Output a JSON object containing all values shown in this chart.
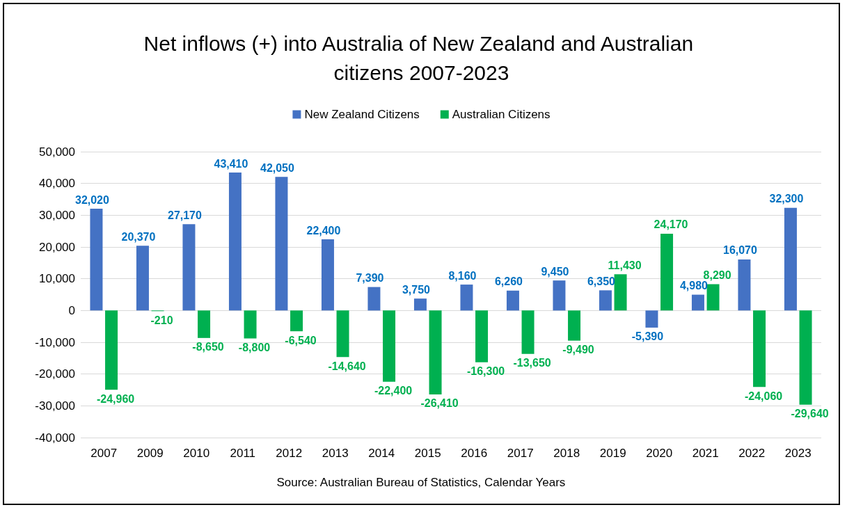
{
  "chart_data": {
    "type": "bar",
    "title": "Net inflows (+) into Australia of New Zealand and Australian citizens 2007-2023",
    "categories": [
      "2007",
      "2009",
      "2010",
      "2011",
      "2012",
      "2013",
      "2014",
      "2015",
      "2016",
      "2017",
      "2018",
      "2019",
      "2020",
      "2021",
      "2022",
      "2023"
    ],
    "series": [
      {
        "name": "New Zealand Citizens",
        "color": "#4472c4",
        "values": [
          32020,
          20370,
          27170,
          43410,
          42050,
          22400,
          7390,
          3750,
          8160,
          6260,
          9450,
          6350,
          -5390,
          4980,
          16070,
          32300
        ],
        "value_labels": [
          "32,020",
          "20,370",
          "27,170",
          "43,410",
          "42,050",
          "22,400",
          "7,390",
          "3,750",
          "8,160",
          "6,260",
          "9,450",
          "6,350",
          "-5,390",
          "4,980",
          "16,070",
          "32,300"
        ]
      },
      {
        "name": "Australian Citizens",
        "color": "#00b050",
        "values": [
          -24960,
          -210,
          -8650,
          -8800,
          -6540,
          -14640,
          -22400,
          -26410,
          -16300,
          -13650,
          -9490,
          11430,
          24170,
          8290,
          -24060,
          -29640
        ],
        "value_labels": [
          "-24,960",
          "-210",
          "-8,650",
          "-8,800",
          "-6,540",
          "-14,640",
          "-22,400",
          "-26,410",
          "-16,300",
          "-13,650",
          "-9,490",
          "11,430",
          "24,170",
          "8,290",
          "-24,060",
          "-29,640"
        ]
      }
    ],
    "ylim": [
      -40000,
      50000
    ],
    "yticks": [
      {
        "value": -40000,
        "label": "-40,000"
      },
      {
        "value": -30000,
        "label": "-30,000"
      },
      {
        "value": -20000,
        "label": "-20,000"
      },
      {
        "value": -10000,
        "label": "-10,000"
      },
      {
        "value": 0,
        "label": "0"
      },
      {
        "value": 10000,
        "label": "10,000"
      },
      {
        "value": 20000,
        "label": "20,000"
      },
      {
        "value": 30000,
        "label": "30,000"
      },
      {
        "value": 40000,
        "label": "40,000"
      },
      {
        "value": 50000,
        "label": "50,000"
      }
    ],
    "grid": "y",
    "legend": "top",
    "annotations": [
      "Source: Australian Bureau of Statistics, Calendar Years"
    ]
  }
}
